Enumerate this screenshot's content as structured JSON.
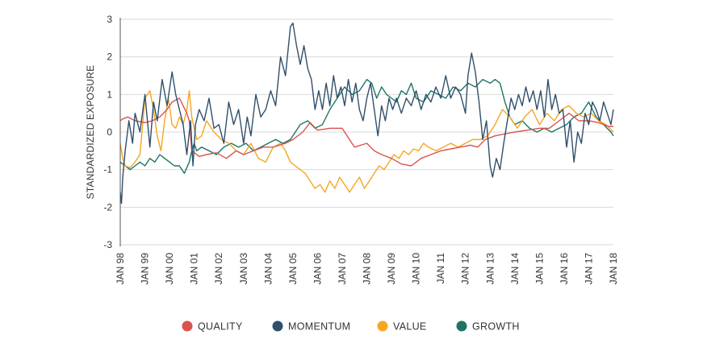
{
  "chart_data": {
    "type": "line",
    "title": "",
    "ylabel": "STANDARDIZED EXPOSURE",
    "xlabel": "",
    "ylim": [
      -3,
      3
    ],
    "yticks": [
      "3",
      "2",
      "1",
      "0",
      "-1",
      "-2",
      "-3"
    ],
    "xlim": [
      1998.0,
      2018.0
    ],
    "xticks": [
      "JAN 98",
      "JAN 99",
      "JAN 00",
      "JAN 01",
      "JAN 02",
      "JAN 03",
      "JAN 04",
      "JAN 05",
      "JAN 06",
      "JAN 07",
      "JAN 08",
      "JAN 09",
      "JAN 10",
      "JAN 11",
      "JAN 12",
      "JAN 13",
      "JAN 14",
      "JAN 15",
      "JAN 16",
      "JAN 17",
      "JAN 18"
    ],
    "grid": "horizontal",
    "legend_position": "bottom",
    "series": [
      {
        "name": "QUALITY",
        "color": "#d9534f",
        "x": [
          1998.0,
          1998.1,
          1998.3,
          1998.6,
          1999.0,
          1999.3,
          1999.6,
          1999.9,
          2000.1,
          2000.4,
          2000.7,
          2000.8,
          2000.9,
          2001.2,
          2001.5,
          2001.9,
          2002.3,
          2002.7,
          2003.0,
          2003.4,
          2003.8,
          2004.2,
          2004.7,
          2005.0,
          2005.4,
          2005.7,
          2006.0,
          2006.5,
          2007.0,
          2007.5,
          2008.0,
          2008.3,
          2008.6,
          2009.0,
          2009.4,
          2009.8,
          2010.2,
          2010.6,
          2011.0,
          2011.4,
          2011.8,
          2012.2,
          2012.5,
          2012.8,
          2013.2,
          2013.6,
          2014.0,
          2014.5,
          2015.0,
          2015.4,
          2015.8,
          2016.2,
          2016.6,
          2017.0,
          2017.4,
          2017.8,
          2018.0
        ],
        "y": [
          0.3,
          0.35,
          0.4,
          0.3,
          0.25,
          0.3,
          0.4,
          0.6,
          0.8,
          0.9,
          0.5,
          0.3,
          -0.5,
          -0.65,
          -0.6,
          -0.55,
          -0.7,
          -0.5,
          -0.6,
          -0.5,
          -0.4,
          -0.4,
          -0.3,
          -0.2,
          0.0,
          0.25,
          0.05,
          0.1,
          0.1,
          -0.4,
          -0.3,
          -0.5,
          -0.6,
          -0.7,
          -0.85,
          -0.9,
          -0.7,
          -0.6,
          -0.5,
          -0.45,
          -0.4,
          -0.35,
          -0.4,
          -0.2,
          -0.1,
          -0.05,
          0.0,
          0.05,
          0.1,
          0.1,
          0.3,
          0.5,
          0.3,
          0.3,
          0.25,
          0.15,
          0.15
        ]
      },
      {
        "name": "MOMENTUM",
        "color": "#2f4f6b",
        "x": [
          1998.0,
          1998.05,
          1998.1,
          1998.2,
          1998.35,
          1998.5,
          1998.6,
          1998.8,
          1999.0,
          1999.2,
          1999.35,
          1999.5,
          1999.7,
          1999.9,
          2000.1,
          2000.25,
          2000.4,
          2000.55,
          2000.7,
          2000.85,
          2000.95,
          2001.05,
          2001.2,
          2001.4,
          2001.6,
          2001.8,
          2002.0,
          2002.2,
          2002.4,
          2002.6,
          2002.8,
          2003.0,
          2003.15,
          2003.3,
          2003.5,
          2003.7,
          2003.9,
          2004.1,
          2004.3,
          2004.5,
          2004.7,
          2004.9,
          2005.0,
          2005.15,
          2005.3,
          2005.45,
          2005.6,
          2005.75,
          2005.9,
          2006.05,
          2006.2,
          2006.35,
          2006.5,
          2006.65,
          2006.8,
          2006.95,
          2007.1,
          2007.25,
          2007.4,
          2007.55,
          2007.7,
          2007.85,
          2008.0,
          2008.15,
          2008.3,
          2008.45,
          2008.6,
          2008.75,
          2008.9,
          2009.05,
          2009.2,
          2009.4,
          2009.6,
          2009.8,
          2010.0,
          2010.2,
          2010.4,
          2010.6,
          2010.8,
          2011.0,
          2011.2,
          2011.4,
          2011.6,
          2011.8,
          2012.0,
          2012.1,
          2012.25,
          2012.4,
          2012.55,
          2012.7,
          2012.85,
          2013.0,
          2013.1,
          2013.25,
          2013.4,
          2013.55,
          2013.7,
          2013.85,
          2014.0,
          2014.15,
          2014.3,
          2014.45,
          2014.6,
          2014.75,
          2014.9,
          2015.05,
          2015.2,
          2015.35,
          2015.5,
          2015.65,
          2015.8,
          2015.95,
          2016.1,
          2016.25,
          2016.4,
          2016.55,
          2016.7,
          2016.85,
          2017.0,
          2017.15,
          2017.3,
          2017.45,
          2017.6,
          2017.75,
          2017.9,
          2018.0
        ],
        "y": [
          -1.6,
          -1.9,
          -1.2,
          -0.5,
          0.3,
          -0.3,
          0.5,
          0.0,
          1.0,
          -0.4,
          0.8,
          0.3,
          1.4,
          0.7,
          1.6,
          1.0,
          0.6,
          0.2,
          -0.6,
          0.3,
          -0.9,
          0.2,
          0.6,
          0.3,
          0.9,
          0.1,
          0.2,
          -0.3,
          0.8,
          0.2,
          0.6,
          -0.3,
          0.4,
          -0.1,
          1.0,
          0.4,
          0.6,
          1.1,
          0.7,
          2.0,
          1.5,
          2.8,
          2.9,
          2.3,
          1.8,
          2.3,
          1.7,
          1.4,
          0.6,
          1.1,
          0.6,
          1.3,
          0.7,
          1.5,
          0.9,
          1.2,
          0.7,
          1.4,
          0.8,
          1.3,
          0.6,
          0.3,
          0.9,
          1.3,
          0.6,
          -0.1,
          0.7,
          0.3,
          0.9,
          0.6,
          0.9,
          0.5,
          0.9,
          0.7,
          1.1,
          0.6,
          1.0,
          0.8,
          1.2,
          0.9,
          1.5,
          0.9,
          1.2,
          1.0,
          0.5,
          1.5,
          2.1,
          1.6,
          0.8,
          -0.2,
          0.3,
          -0.9,
          -1.2,
          -0.7,
          -1.0,
          -0.3,
          0.3,
          0.9,
          0.6,
          1.0,
          0.7,
          1.2,
          0.8,
          1.1,
          0.6,
          1.1,
          0.4,
          1.4,
          0.6,
          1.0,
          0.5,
          0.6,
          -0.4,
          0.3,
          -0.8,
          0.0,
          -0.3,
          0.5,
          0.2,
          0.8,
          0.6,
          0.3,
          0.8,
          0.5,
          0.2,
          0.6
        ]
      },
      {
        "name": "VALUE",
        "color": "#f5a623",
        "x": [
          1998.0,
          1998.1,
          1998.2,
          1998.4,
          1998.6,
          1998.8,
          1999.0,
          1999.2,
          1999.35,
          1999.5,
          1999.65,
          1999.8,
          1999.95,
          2000.1,
          2000.25,
          2000.4,
          2000.55,
          2000.7,
          2000.8,
          2000.9,
          2001.0,
          2001.1,
          2001.3,
          2001.5,
          2001.8,
          2002.1,
          2002.4,
          2002.7,
          2003.0,
          2003.3,
          2003.6,
          2003.9,
          2004.2,
          2004.5,
          2004.7,
          2004.9,
          2005.1,
          2005.3,
          2005.5,
          2005.7,
          2005.9,
          2006.1,
          2006.3,
          2006.5,
          2006.7,
          2006.9,
          2007.1,
          2007.3,
          2007.5,
          2007.7,
          2007.9,
          2008.1,
          2008.3,
          2008.5,
          2008.7,
          2008.9,
          2009.1,
          2009.3,
          2009.5,
          2009.7,
          2009.9,
          2010.1,
          2010.3,
          2010.5,
          2010.8,
          2011.1,
          2011.4,
          2011.7,
          2012.0,
          2012.3,
          2012.6,
          2012.9,
          2013.2,
          2013.5,
          2013.8,
          2014.1,
          2014.4,
          2014.7,
          2015.0,
          2015.3,
          2015.6,
          2015.9,
          2016.2,
          2016.5,
          2016.8,
          2017.1,
          2017.4,
          2017.7,
          2018.0
        ],
        "y": [
          -0.3,
          -0.7,
          -0.9,
          -0.95,
          -0.8,
          -0.6,
          0.9,
          1.1,
          0.6,
          -0.1,
          -0.5,
          0.3,
          0.9,
          0.2,
          0.1,
          0.4,
          0.2,
          0.6,
          1.1,
          0.4,
          0.1,
          -0.2,
          -0.1,
          0.3,
          0.0,
          -0.2,
          -0.3,
          -0.5,
          -0.6,
          -0.3,
          -0.7,
          -0.8,
          -0.4,
          -0.3,
          -0.5,
          -0.8,
          -0.9,
          -1.0,
          -1.1,
          -1.3,
          -1.5,
          -1.4,
          -1.6,
          -1.3,
          -1.5,
          -1.2,
          -1.4,
          -1.6,
          -1.4,
          -1.2,
          -1.5,
          -1.3,
          -1.1,
          -0.9,
          -1.0,
          -0.8,
          -0.6,
          -0.7,
          -0.5,
          -0.6,
          -0.45,
          -0.5,
          -0.3,
          -0.4,
          -0.5,
          -0.4,
          -0.3,
          -0.4,
          -0.3,
          -0.2,
          -0.2,
          -0.1,
          0.2,
          0.6,
          0.4,
          0.1,
          0.4,
          0.6,
          0.2,
          0.5,
          0.3,
          0.6,
          0.7,
          0.5,
          0.4,
          0.5,
          0.3,
          0.2,
          0.0
        ]
      },
      {
        "name": "GROWTH",
        "color": "#1e7466",
        "x": [
          1998.0,
          1998.2,
          1998.4,
          1998.6,
          1998.8,
          1999.0,
          1999.2,
          1999.4,
          1999.6,
          1999.8,
          2000.0,
          2000.2,
          2000.4,
          2000.6,
          2000.8,
          2000.9,
          2001.0,
          2001.1,
          2001.3,
          2001.6,
          2001.9,
          2002.2,
          2002.5,
          2002.8,
          2003.1,
          2003.4,
          2003.7,
          2004.0,
          2004.3,
          2004.6,
          2004.9,
          2005.1,
          2005.3,
          2005.6,
          2005.9,
          2006.2,
          2006.5,
          2006.8,
          2007.1,
          2007.4,
          2007.7,
          2008.0,
          2008.2,
          2008.4,
          2008.6,
          2008.8,
          2009.0,
          2009.2,
          2009.4,
          2009.6,
          2009.8,
          2010.0,
          2010.3,
          2010.6,
          2010.9,
          2011.2,
          2011.5,
          2011.8,
          2012.1,
          2012.4,
          2012.7,
          2013.0,
          2013.2,
          2013.4,
          2013.6,
          2013.8,
          2014.0,
          2014.3,
          2014.6,
          2014.9,
          2015.2,
          2015.5,
          2015.8,
          2016.1,
          2016.4,
          2016.7,
          2017.0,
          2017.3,
          2017.6,
          2017.9,
          2018.0
        ],
        "y": [
          -0.8,
          -0.9,
          -1.0,
          -0.9,
          -0.8,
          -0.9,
          -0.7,
          -0.8,
          -0.6,
          -0.7,
          -0.8,
          -0.9,
          -0.9,
          -1.1,
          -0.8,
          -0.5,
          -0.3,
          -0.5,
          -0.4,
          -0.5,
          -0.6,
          -0.4,
          -0.3,
          -0.4,
          -0.3,
          -0.5,
          -0.4,
          -0.3,
          -0.2,
          -0.3,
          -0.2,
          0.0,
          0.2,
          0.3,
          0.1,
          0.2,
          0.6,
          0.9,
          1.2,
          1.0,
          1.1,
          1.4,
          1.3,
          0.9,
          1.2,
          1.0,
          0.9,
          0.8,
          1.1,
          1.0,
          1.3,
          0.9,
          0.8,
          1.1,
          1.0,
          0.9,
          1.2,
          1.1,
          1.3,
          1.2,
          1.4,
          1.3,
          1.4,
          1.3,
          0.8,
          0.4,
          0.2,
          0.3,
          0.1,
          0.0,
          0.1,
          0.0,
          0.1,
          0.2,
          0.4,
          0.5,
          0.8,
          0.4,
          0.2,
          0.0,
          -0.1
        ]
      }
    ]
  }
}
